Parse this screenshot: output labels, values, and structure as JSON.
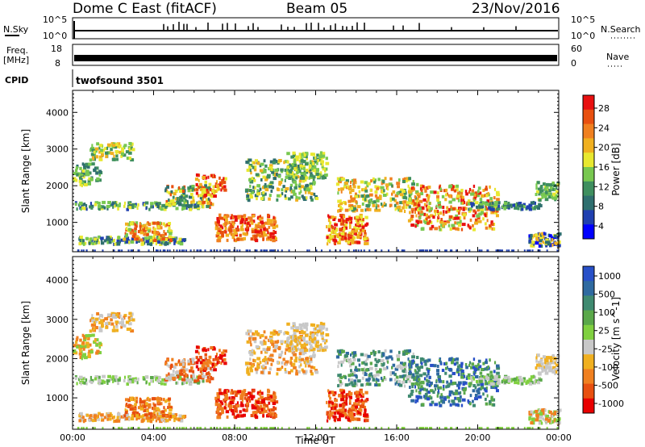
{
  "header": {
    "title": "Dome C East (fitACF)",
    "beam": "Beam 05",
    "date": "23/Nov/2016"
  },
  "side_labels": {
    "nsky": "N.Sky",
    "freq_top": "Freq.",
    "freq_unit": "[MHz]",
    "cpid": "CPID",
    "nsearch": "N.Search",
    "nave": "Nave",
    "cpid_value": "twofsound 3501"
  },
  "strip_ticks": {
    "nsky_left": [
      "10^5",
      "10^0"
    ],
    "nsky_right": [
      "10^5",
      "10^0"
    ],
    "freq_left": [
      "18",
      "8"
    ],
    "nave_right": [
      "60",
      "0"
    ]
  },
  "colors": {
    "power_scale": [
      "#0000ff",
      "#2040b0",
      "#2f6f6f",
      "#3f8f5f",
      "#78c850",
      "#e8e830",
      "#f0b020",
      "#f08020",
      "#e85010",
      "#e81010"
    ],
    "velocity_scale": [
      "#2850c8",
      "#2f6aa0",
      "#3f8a70",
      "#5aa84a",
      "#80d040",
      "#c8c8c8",
      "#f0b020",
      "#f08020",
      "#e85010",
      "#e80000"
    ]
  },
  "chart_data": [
    {
      "type": "heatmap",
      "name": "power",
      "ylabel": "Slant Range [km]",
      "xlabel": "Time UT",
      "ylim": [
        200,
        4600
      ],
      "yticks": [
        1000,
        2000,
        3000,
        4000
      ],
      "xticks": [
        "00:00",
        "04:00",
        "08:00",
        "12:00",
        "16:00",
        "20:00",
        "00:00"
      ],
      "colorbar": {
        "label": "Power [dB]",
        "ticks": [
          "4",
          "8",
          "12",
          "16",
          "20",
          "24",
          "28"
        ]
      }
    },
    {
      "type": "heatmap",
      "name": "velocity",
      "ylabel": "Slant Range [km]",
      "xlabel": "Time UT",
      "ylim": [
        200,
        4600
      ],
      "yticks": [
        1000,
        2000,
        3000,
        4000
      ],
      "xticks": [
        "00:00",
        "04:00",
        "08:00",
        "12:00",
        "16:00",
        "20:00",
        "00:00"
      ],
      "colorbar": {
        "label": "Velocity [m s^-1]",
        "ticks": [
          "1000",
          "500",
          "100",
          "25",
          "-25",
          "-100",
          "-500",
          "-1000"
        ]
      }
    }
  ]
}
